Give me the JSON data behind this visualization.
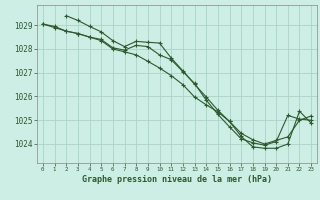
{
  "title": "Graphe pression niveau de la mer (hPa)",
  "background_color": "#cceee4",
  "grid_color": "#aad4c8",
  "line_color": "#2d5a2d",
  "xlim": [
    -0.5,
    23.5
  ],
  "ylim": [
    1023.2,
    1029.85
  ],
  "yticks": [
    1024,
    1025,
    1026,
    1027,
    1028,
    1029
  ],
  "xtick_labels": [
    "0",
    "1",
    "2",
    "3",
    "4",
    "5",
    "6",
    "7",
    "8",
    "9",
    "10",
    "11",
    "12",
    "13",
    "14",
    "15",
    "16",
    "17",
    "18",
    "19",
    "20",
    "21",
    "22",
    "23"
  ],
  "line1_x": [
    0,
    1,
    2,
    3,
    4,
    5,
    6,
    7,
    8,
    9,
    10,
    11,
    12,
    13,
    14,
    15,
    16,
    17,
    18,
    19,
    20,
    21,
    22,
    23
  ],
  "line1_y": [
    1029.05,
    1028.9,
    1028.75,
    1028.65,
    1028.5,
    1028.4,
    1028.05,
    1027.95,
    1028.15,
    1028.1,
    1027.75,
    1027.55,
    1027.05,
    1026.55,
    1025.85,
    1025.25,
    1024.72,
    1024.22,
    1024.05,
    1023.95,
    1024.1,
    1025.2,
    1025.05,
    1025.0
  ],
  "line2_x": [
    0,
    1,
    2,
    3,
    4,
    5,
    6,
    7,
    8,
    9,
    10,
    11,
    12,
    13,
    14,
    15,
    16,
    17,
    18,
    19,
    20,
    21,
    22,
    23
  ],
  "line2_y": [
    1029.05,
    1028.95,
    1028.75,
    1028.65,
    1028.5,
    1028.35,
    1028.0,
    1027.88,
    1027.75,
    1027.48,
    1027.2,
    1026.88,
    1026.5,
    1025.98,
    1025.65,
    1025.35,
    1024.95,
    1024.45,
    1024.18,
    1024.0,
    1024.15,
    1024.3,
    1025.0,
    1025.18
  ],
  "line3_x": [
    2,
    3,
    4,
    5,
    6,
    7,
    8,
    9,
    10,
    11,
    12,
    13,
    14,
    15,
    16,
    17,
    18,
    19,
    20,
    21,
    22,
    23
  ],
  "line3_y": [
    1029.4,
    1029.2,
    1028.95,
    1028.72,
    1028.35,
    1028.1,
    1028.32,
    1028.28,
    1028.25,
    1027.62,
    1027.08,
    1026.52,
    1025.98,
    1025.42,
    1024.95,
    1024.32,
    1023.88,
    1023.82,
    1023.82,
    1024.0,
    1025.38,
    1024.88
  ]
}
